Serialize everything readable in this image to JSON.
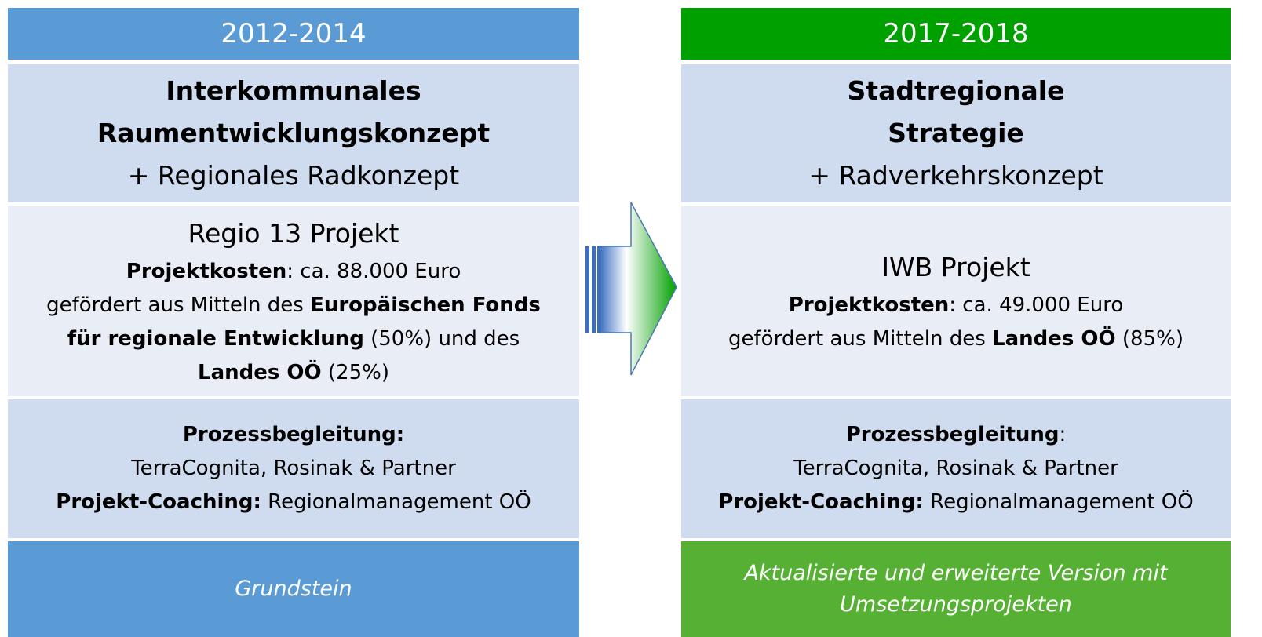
{
  "columns": [
    {
      "header": "2012-2014",
      "sections": [
        [
          [
            {
              "text": "Interkommunales",
              "bold": true
            }
          ],
          [
            {
              "text": "Raumentwicklungskonzept",
              "bold": true
            }
          ],
          [
            {
              "text": "+ Regionales Radkonzept",
              "bold": false
            }
          ]
        ],
        [
          [
            {
              "text": "Regio 13 Projekt",
              "bold": false
            }
          ],
          [
            {
              "text": "Projektkosten",
              "bold": true
            },
            {
              "text": ": ca. 88.000 Euro",
              "bold": false
            }
          ],
          [
            {
              "text": "gefördert aus Mitteln des ",
              "bold": false
            },
            {
              "text": "Europäischen Fonds",
              "bold": true
            }
          ],
          [
            {
              "text": "für regionale Entwicklung",
              "bold": true
            },
            {
              "text": " (50%) und des",
              "bold": false
            }
          ],
          [
            {
              "text": "Landes OÖ",
              "bold": true
            },
            {
              "text": " (25%)",
              "bold": false
            }
          ]
        ],
        [
          [
            {
              "text": "Prozessbegleitung:",
              "bold": true
            }
          ],
          [
            {
              "text": "TerraCognita, Rosinak & Partner",
              "bold": false
            }
          ],
          [
            {
              "text": "Projekt-Coaching:",
              "bold": true
            },
            {
              "text": " Regionalmanagement OÖ",
              "bold": false
            }
          ]
        ]
      ],
      "footer": [
        "Grundstein"
      ]
    },
    {
      "header": "2017-2018",
      "sections": [
        [
          [
            {
              "text": "Stadtregionale",
              "bold": true
            }
          ],
          [
            {
              "text": "Strategie",
              "bold": true
            }
          ],
          [
            {
              "text": "+ Radverkehrskonzept",
              "bold": false
            }
          ]
        ],
        [
          [
            {
              "text": "IWB Projekt",
              "bold": false
            }
          ],
          [
            {
              "text": "Projektkosten",
              "bold": true
            },
            {
              "text": ": ca. 49.000 Euro",
              "bold": false
            }
          ],
          [
            {
              "text": "gefördert aus Mitteln des ",
              "bold": false
            },
            {
              "text": "Landes OÖ",
              "bold": true
            },
            {
              "text": " (85%)",
              "bold": false
            }
          ]
        ],
        [
          [
            {
              "text": "Prozessbegleitung",
              "bold": true
            },
            {
              "text": ":",
              "bold": false
            }
          ],
          [
            {
              "text": "TerraCognita, Rosinak & Partner",
              "bold": false
            }
          ],
          [
            {
              "text": "Projekt-Coaching:",
              "bold": true
            },
            {
              "text": " Regionalmanagement OÖ",
              "bold": false
            }
          ]
        ]
      ],
      "footer": [
        "Aktualisierte und erweiterte Version mit",
        "Umsetzungsprojekten"
      ]
    }
  ]
}
